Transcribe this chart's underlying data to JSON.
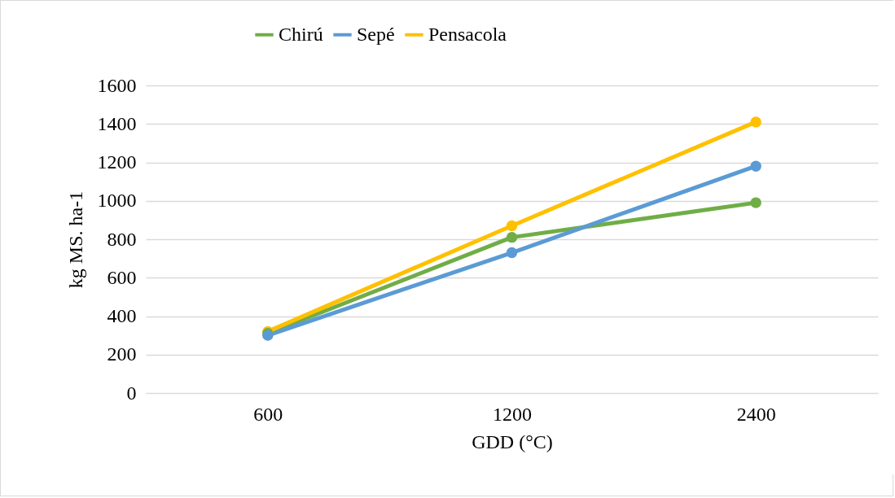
{
  "chart_data": {
    "type": "line",
    "xlabel": "GDD (°C)",
    "ylabel": "kg MS. ha-1",
    "categories": [
      "600",
      "1200",
      "2400"
    ],
    "series": [
      {
        "name": "Chirú",
        "color": "#70ad47",
        "values": [
          310,
          810,
          990
        ]
      },
      {
        "name": "Sepé",
        "color": "#5b9bd5",
        "values": [
          300,
          730,
          1180
        ]
      },
      {
        "name": "Pensacola",
        "color": "#ffc000",
        "values": [
          320,
          870,
          1410
        ]
      }
    ],
    "ylim": [
      0,
      1600
    ],
    "yticks": [
      0,
      200,
      400,
      600,
      800,
      1000,
      1200,
      1400,
      1600
    ],
    "grid": "y",
    "legend": "top",
    "marker": "circle",
    "line_style": "solid"
  }
}
